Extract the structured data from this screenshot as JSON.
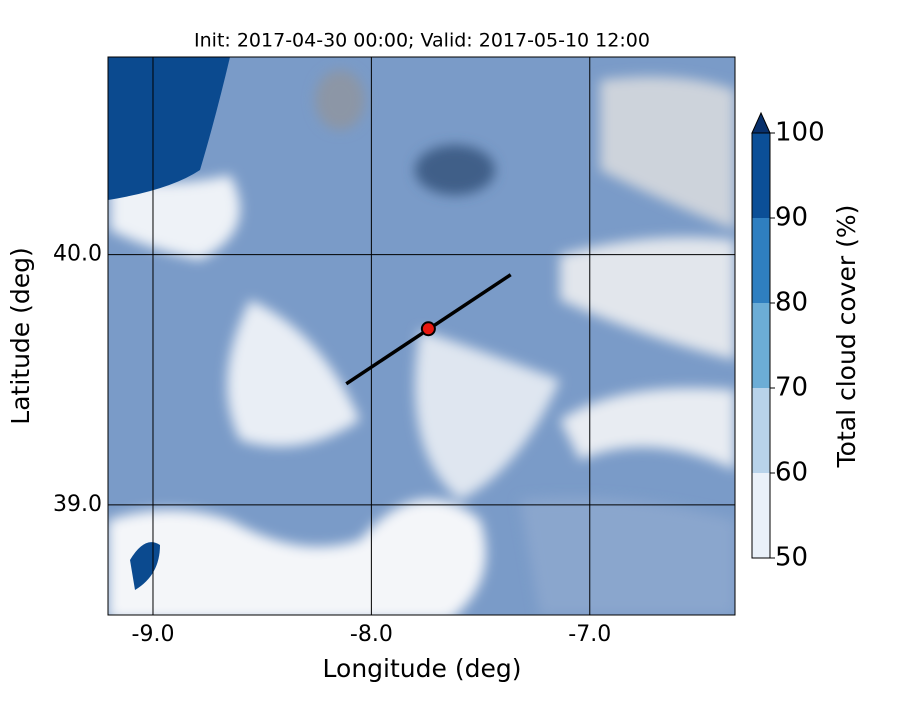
{
  "chart_data": {
    "type": "contour-map",
    "title": "Init: 2017-04-30 00:00; Valid: 2017-05-10 12:00",
    "xlabel": "Longitude (deg)",
    "ylabel": "Latitude (deg)",
    "xlim": [
      -9.206,
      -6.335
    ],
    "ylim": [
      38.56,
      40.79
    ],
    "xticks": [
      {
        "value": -9,
        "label": "-9.0"
      },
      {
        "value": -8,
        "label": "-8.0"
      },
      {
        "value": -7,
        "label": "-7.0"
      }
    ],
    "yticks": [
      {
        "value": 39,
        "label": "39.0"
      },
      {
        "value": 40,
        "label": "40.0"
      }
    ],
    "grid": true,
    "grid_color": "#000000",
    "section": {
      "x": [
        -8.115,
        -7.362
      ],
      "y": [
        39.484,
        39.92
      ],
      "color": "#000000"
    },
    "point": {
      "x": -7.739,
      "y": 39.704,
      "color": "#e8170f"
    },
    "colorbar": {
      "label": "Total cloud cover (%)",
      "clim": [
        50,
        100
      ],
      "levels": [
        50,
        60,
        70,
        80,
        90,
        100
      ],
      "colors": [
        "#eaf1f9",
        "#b8d3ea",
        "#6cadd6",
        "#2f7fc0",
        "#0b4f97"
      ],
      "extend": "max",
      "extend_color": "#08306b",
      "ticks": [
        50,
        60,
        70,
        80,
        90,
        100
      ]
    }
  }
}
